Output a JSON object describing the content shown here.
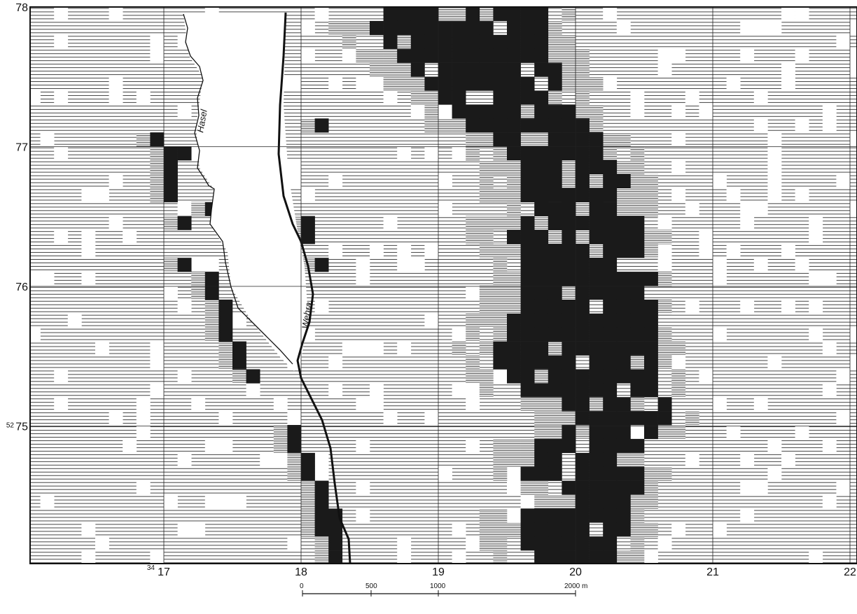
{
  "map": {
    "x_labels": [
      {
        "prefix": "34",
        "label": "17"
      },
      {
        "label": "18"
      },
      {
        "label": "19"
      },
      {
        "label": "20"
      },
      {
        "label": "21"
      },
      {
        "label": "22"
      }
    ],
    "y_labels": [
      {
        "label": "78"
      },
      {
        "label": "77"
      },
      {
        "label": "76"
      },
      {
        "prefix": "52",
        "label": "75"
      }
    ],
    "rivers": [
      "Hasel",
      "Wehra"
    ],
    "scale": [
      "0",
      "500",
      "1000",
      "2000 m"
    ]
  }
}
